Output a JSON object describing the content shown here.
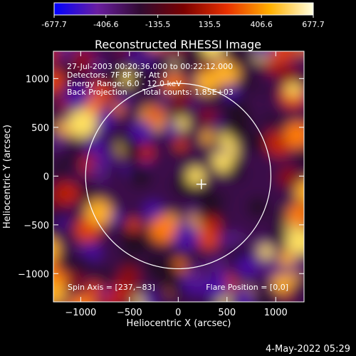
{
  "colorbar": {
    "ticks": [
      "-677.7",
      "-406.6",
      "-135.5",
      "135.5",
      "406.6",
      "677.7"
    ],
    "min": -677.7,
    "max": 677.7,
    "colors": [
      "#0000ff",
      "#6a1ea0",
      "#300a30",
      "#7a0000",
      "#e83000",
      "#ffb000",
      "#ffffe0"
    ]
  },
  "chart_data": {
    "type": "heatmap",
    "title": "Reconstructed RHESSI Image",
    "xlabel": "Heliocentric X (arcsec)",
    "ylabel": "Heliocentric Y (arcsec)",
    "xlim": [
      -1280,
      1290
    ],
    "ylim": [
      -1290,
      1280
    ],
    "xticks": [
      -1000,
      -500,
      0,
      500,
      1000
    ],
    "yticks": [
      -1000,
      -500,
      0,
      500,
      1000
    ],
    "xtick_labels": [
      "−1000",
      "−500",
      "0",
      "500",
      "1000"
    ],
    "ytick_labels": [
      "−1000",
      "−500",
      "0",
      "500",
      "1000"
    ],
    "solar_disk": {
      "center": [
        0,
        0
      ],
      "radius_arcsec": 950
    },
    "flare_marker": [
      237,
      -83
    ],
    "value_range": [
      -677.7,
      677.7
    ],
    "annotations": {
      "time_range": "27-Jul-2003 00:20:36.000 to 00:22:12.000",
      "detectors": "Detectors: 7F 8F 9F, Att 0",
      "energy": "Energy Range: 6.0 - 12.0 keV",
      "method": "Back Projection",
      "counts": "Total counts: 1.85E+03",
      "spin_axis": "Spin Axis = [237,−83]",
      "flare_position": "Flare Position = [0,0]"
    }
  },
  "footer": {
    "date": "4-May-2022 05:29"
  }
}
